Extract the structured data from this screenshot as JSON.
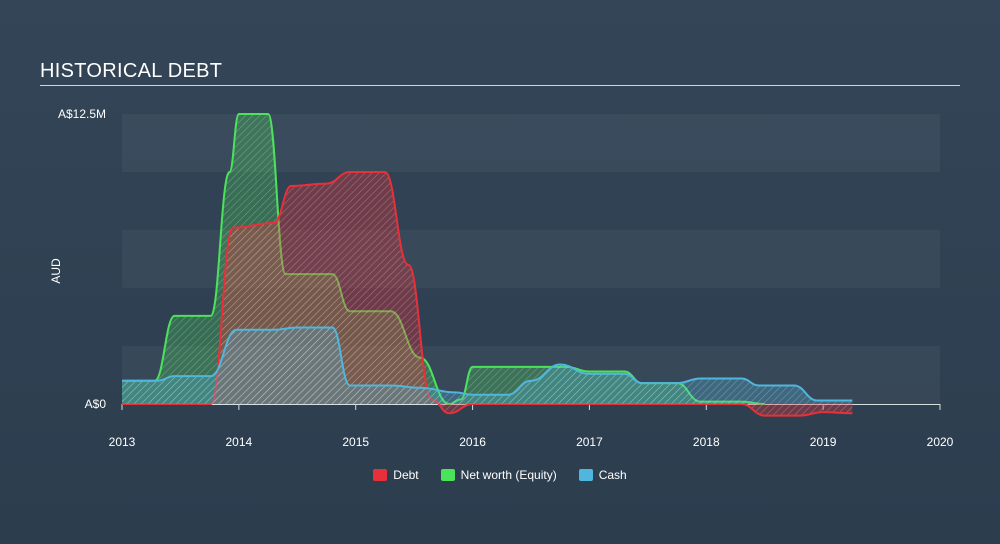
{
  "header": {
    "title": "HISTORICAL DEBT"
  },
  "colors": {
    "debt": "#e8303a",
    "equity": "#4be35a",
    "cash": "#4fb6dd"
  },
  "chart_data": {
    "type": "area",
    "title": "HISTORICAL DEBT",
    "ylabel": "AUD",
    "xlabel": "",
    "ylim": [
      0,
      12.5
    ],
    "yunit": "A$M",
    "xlim": [
      2013,
      2020
    ],
    "ytick_labels": [
      "A$0",
      "A$12.5M"
    ],
    "xtick_labels": [
      "2013",
      "2014",
      "2015",
      "2016",
      "2017",
      "2018",
      "2019",
      "2020"
    ],
    "legend_position": "bottom-center",
    "grid": true,
    "series": [
      {
        "name": "Debt",
        "color": "#e8303a",
        "x": [
          2013.0,
          2013.76,
          2013.95,
          2014.3,
          2014.45,
          2014.75,
          2014.95,
          2015.25,
          2015.45,
          2015.65,
          2015.8,
          2016.0,
          2016.5,
          2017.0,
          2018.0,
          2018.3,
          2018.5,
          2018.8,
          2019.0,
          2019.25
        ],
        "values": [
          0,
          0,
          7.6,
          7.8,
          9.4,
          9.5,
          10.0,
          10.0,
          6.0,
          0.2,
          -0.4,
          0,
          0,
          0,
          0,
          0,
          -0.5,
          -0.5,
          -0.35,
          -0.4
        ]
      },
      {
        "name": "Net worth (Equity)",
        "color": "#4be35a",
        "x": [
          2013.0,
          2013.28,
          2013.45,
          2013.76,
          2013.92,
          2014.0,
          2014.25,
          2014.4,
          2014.5,
          2014.8,
          2014.95,
          2015.3,
          2015.55,
          2015.8,
          2015.9,
          2016.0,
          2016.5,
          2016.8,
          2017.0,
          2017.3,
          2017.45,
          2017.75,
          2017.95,
          2018.3,
          2018.5
        ],
        "values": [
          1.0,
          1.0,
          3.8,
          3.8,
          10.0,
          12.5,
          12.5,
          5.6,
          5.6,
          5.6,
          4.0,
          4.0,
          2.0,
          0,
          0.2,
          1.6,
          1.6,
          1.6,
          1.4,
          1.4,
          0.9,
          0.9,
          0.1,
          0.1,
          0
        ]
      },
      {
        "name": "Cash",
        "color": "#4fb6dd",
        "x": [
          2013.0,
          2013.3,
          2013.45,
          2013.76,
          2013.98,
          2014.3,
          2014.5,
          2014.8,
          2014.95,
          2015.3,
          2015.55,
          2015.85,
          2016.0,
          2016.3,
          2016.5,
          2016.75,
          2017.0,
          2017.3,
          2017.45,
          2017.75,
          2017.95,
          2018.3,
          2018.45,
          2018.75,
          2018.95,
          2019.25
        ],
        "values": [
          1.0,
          1.0,
          1.2,
          1.2,
          3.2,
          3.2,
          3.3,
          3.3,
          0.8,
          0.8,
          0.7,
          0.5,
          0.4,
          0.4,
          1.0,
          1.7,
          1.3,
          1.3,
          0.9,
          0.9,
          1.1,
          1.1,
          0.8,
          0.8,
          0.15,
          0.15
        ]
      }
    ]
  }
}
